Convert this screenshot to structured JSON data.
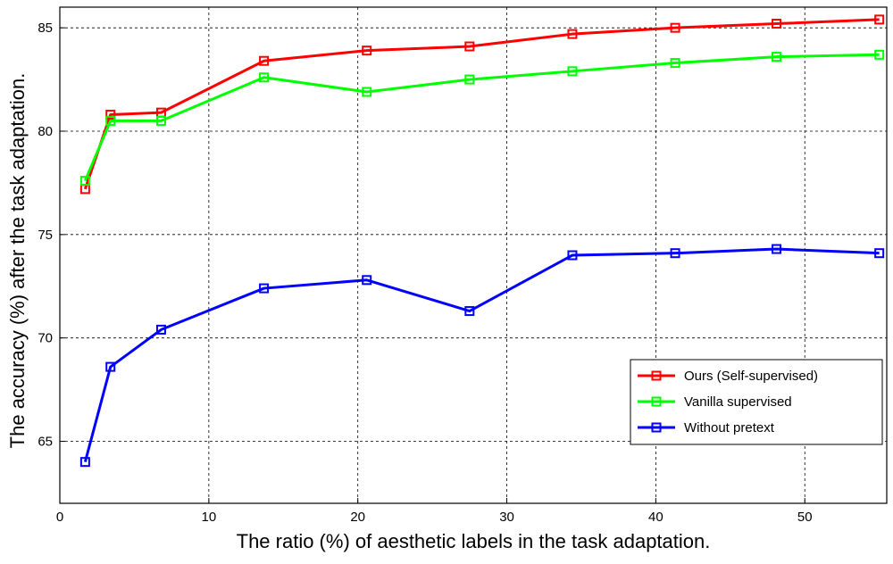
{
  "chart_data": {
    "type": "line",
    "xlabel": "The ratio (%) of aesthetic labels in the task adaptation.",
    "ylabel": "The accuracy (%) after the task adaptation.",
    "xlim": [
      0,
      55.5
    ],
    "ylim": [
      62,
      86
    ],
    "xticks": [
      0,
      10,
      20,
      30,
      40,
      50
    ],
    "yticks": [
      65,
      70,
      75,
      80,
      85
    ],
    "grid": true,
    "legend_position": "lower-right",
    "series": [
      {
        "name": "Ours (Self-supervised)",
        "color": "#ff0000",
        "x": [
          1.7,
          3.4,
          6.8,
          13.7,
          20.6,
          27.5,
          34.4,
          41.3,
          48.1,
          55.0
        ],
        "y": [
          77.2,
          80.8,
          80.9,
          83.4,
          83.9,
          84.1,
          84.7,
          85.0,
          85.2,
          85.4
        ]
      },
      {
        "name": "Vanilla supervised",
        "color": "#00ff00",
        "x": [
          1.7,
          3.4,
          6.8,
          13.7,
          20.6,
          27.5,
          34.4,
          41.3,
          48.1,
          55.0
        ],
        "y": [
          77.6,
          80.5,
          80.5,
          82.6,
          81.9,
          82.5,
          82.9,
          83.3,
          83.6,
          83.7
        ]
      },
      {
        "name": "Without pretext",
        "color": "#0000ff",
        "x": [
          1.7,
          3.4,
          6.8,
          13.7,
          20.6,
          27.5,
          34.4,
          41.3,
          48.1,
          55.0
        ],
        "y": [
          64.0,
          68.6,
          70.4,
          72.4,
          72.8,
          71.3,
          74.0,
          74.1,
          74.3,
          74.1
        ]
      }
    ]
  }
}
